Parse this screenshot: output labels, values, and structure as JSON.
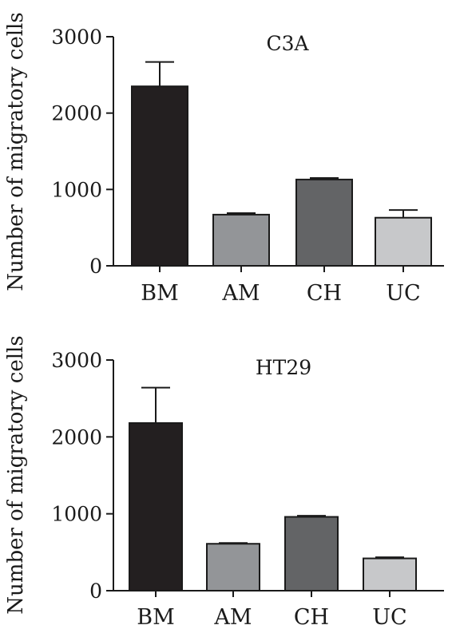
{
  "chart_data": [
    {
      "type": "bar",
      "title": "C3A",
      "ylabel": "Number of migratory cells",
      "xlabel": "",
      "ylim": [
        0,
        3000
      ],
      "yticks": [
        0,
        1000,
        2000,
        3000
      ],
      "categories": [
        "BM",
        "AM",
        "CH",
        "UC"
      ],
      "values": [
        2350,
        670,
        1130,
        630
      ],
      "errors": [
        320,
        20,
        20,
        100
      ],
      "colors": [
        "#231f20",
        "#939598",
        "#636466",
        "#c7c8ca"
      ],
      "grid": false,
      "error_bars": "upper"
    },
    {
      "type": "bar",
      "title": "HT29",
      "ylabel": "Number of migratory cells",
      "xlabel": "",
      "ylim": [
        0,
        3000
      ],
      "yticks": [
        0,
        1000,
        2000,
        3000
      ],
      "categories": [
        "BM",
        "AM",
        "CH",
        "UC"
      ],
      "values": [
        2180,
        610,
        960,
        420
      ],
      "errors": [
        460,
        10,
        15,
        15
      ],
      "colors": [
        "#231f20",
        "#939598",
        "#636466",
        "#c7c8ca"
      ],
      "grid": false,
      "error_bars": "upper"
    }
  ]
}
